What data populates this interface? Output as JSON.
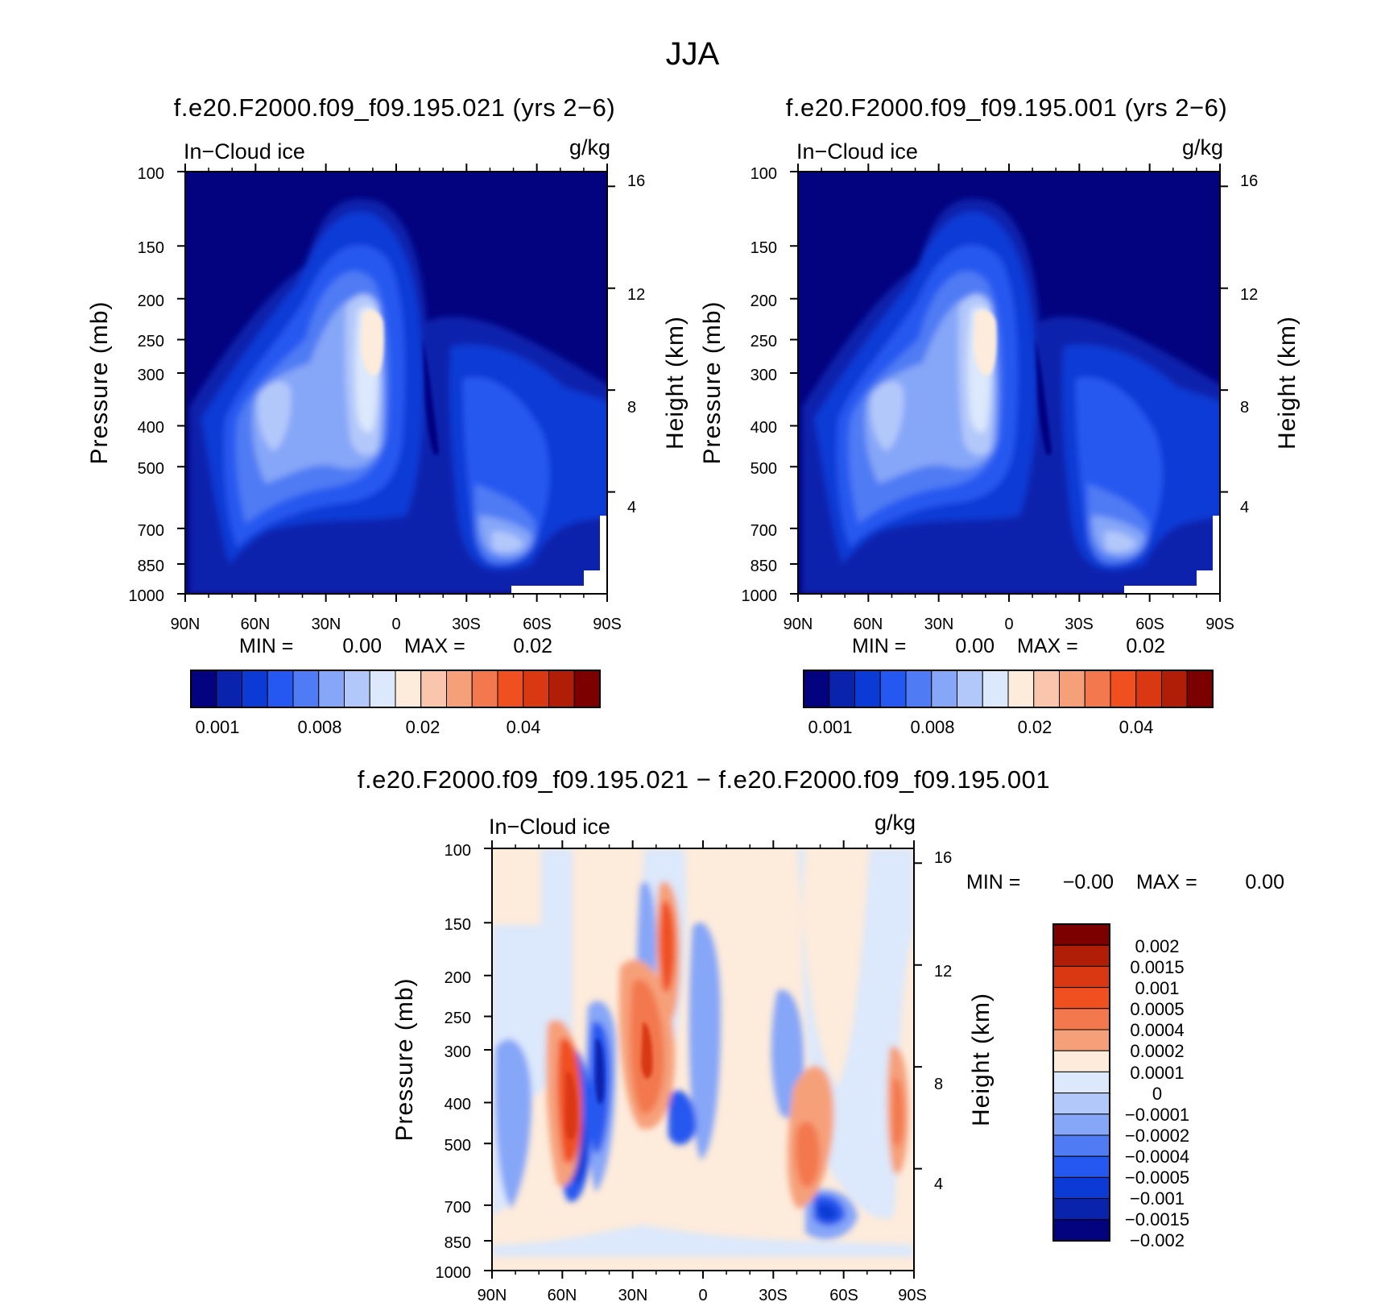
{
  "figure_title": "JJA",
  "chart_data": [
    {
      "type": "heatmap",
      "id": "panel_test",
      "title": "f.e20.F2000.f09_f09.195.021 (yrs 2−6)",
      "field_label": "In−Cloud ice",
      "units": "g/kg",
      "xlabel": "",
      "ylabel": "Pressure (mb)",
      "ylabel_right": "Height (km)",
      "x_ticks": [
        "90N",
        "60N",
        "30N",
        "0",
        "30S",
        "60S",
        "90S"
      ],
      "y_ticks": [
        100,
        150,
        200,
        250,
        300,
        400,
        500,
        700,
        850,
        1000
      ],
      "y_right_ticks": [
        16,
        12,
        8,
        4
      ],
      "min_label": "MIN =",
      "min_value": "0.00",
      "max_label": "MAX =",
      "max_value": "0.02",
      "colorbar_labels": [
        "0.001",
        "0.008",
        "0.02",
        "0.04"
      ],
      "colorbar_colors": [
        "#03037f",
        "#0a23ac",
        "#0b3ad5",
        "#2558f0",
        "#4f7cf4",
        "#86a6f8",
        "#b3c8fa",
        "#dce8fb",
        "#fdebdb",
        "#f9c6ad",
        "#f6a07a",
        "#f3784d",
        "#f04f20",
        "#d93812",
        "#b01e08",
        "#7d0000"
      ],
      "ylim": [
        1000,
        100
      ]
    },
    {
      "type": "heatmap",
      "id": "panel_control",
      "title": "f.e20.F2000.f09_f09.195.001 (yrs 2−6)",
      "field_label": "In−Cloud ice",
      "units": "g/kg",
      "xlabel": "",
      "ylabel": "Pressure (mb)",
      "ylabel_right": "Height (km)",
      "x_ticks": [
        "90N",
        "60N",
        "30N",
        "0",
        "30S",
        "60S",
        "90S"
      ],
      "y_ticks": [
        100,
        150,
        200,
        250,
        300,
        400,
        500,
        700,
        850,
        1000
      ],
      "y_right_ticks": [
        16,
        12,
        8,
        4
      ],
      "min_label": "MIN =",
      "min_value": "0.00",
      "max_label": "MAX =",
      "max_value": "0.02",
      "colorbar_labels": [
        "0.001",
        "0.008",
        "0.02",
        "0.04"
      ],
      "colorbar_colors": [
        "#03037f",
        "#0a23ac",
        "#0b3ad5",
        "#2558f0",
        "#4f7cf4",
        "#86a6f8",
        "#b3c8fa",
        "#dce8fb",
        "#fdebdb",
        "#f9c6ad",
        "#f6a07a",
        "#f3784d",
        "#f04f20",
        "#d93812",
        "#b01e08",
        "#7d0000"
      ],
      "ylim": [
        1000,
        100
      ]
    },
    {
      "type": "heatmap",
      "id": "panel_diff",
      "title": "f.e20.F2000.f09_f09.195.021 − f.e20.F2000.f09_f09.195.001",
      "field_label": "In−Cloud ice",
      "units": "g/kg",
      "xlabel": "",
      "ylabel": "Pressure (mb)",
      "ylabel_right": "Height (km)",
      "x_ticks": [
        "90N",
        "60N",
        "30N",
        "0",
        "30S",
        "60S",
        "90S"
      ],
      "y_ticks": [
        100,
        150,
        200,
        250,
        300,
        400,
        500,
        700,
        850,
        1000
      ],
      "y_right_ticks": [
        16,
        12,
        8,
        4
      ],
      "min_label": "MIN =",
      "min_value": "−0.00",
      "max_label": "MAX =",
      "max_value": "0.00",
      "colorbar_labels": [
        "0.002",
        "0.0015",
        "0.001",
        "0.0005",
        "0.0004",
        "0.0002",
        "0.0001",
        "0",
        "−0.0001",
        "−0.0002",
        "−0.0004",
        "−0.0005",
        "−0.001",
        "−0.0015",
        "−0.002"
      ],
      "colorbar_colors": [
        "#7d0000",
        "#b01e08",
        "#d93812",
        "#f04f20",
        "#f3784d",
        "#f6a07a",
        "#fdebdb",
        "#dce8fb",
        "#b3c8fa",
        "#86a6f8",
        "#4f7cf4",
        "#2558f0",
        "#0b3ad5",
        "#0a23ac",
        "#03037f"
      ],
      "ylim": [
        1000,
        100
      ]
    }
  ]
}
